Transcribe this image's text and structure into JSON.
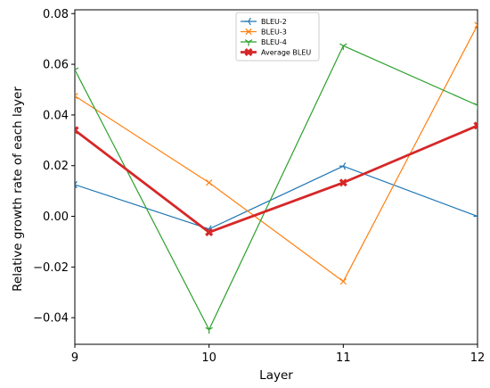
{
  "chart_data": {
    "type": "line",
    "title": "",
    "xlabel": "Layer",
    "ylabel": "Relative growth rate of each layer",
    "x": [
      9,
      10,
      11,
      12
    ],
    "xlim": [
      9,
      12
    ],
    "ylim": [
      -0.0505,
      0.0815
    ],
    "xticks": [
      "9",
      "10",
      "11",
      "12"
    ],
    "yticks": [
      0.08,
      0.06,
      0.04,
      0.02,
      0.0,
      -0.02,
      -0.04
    ],
    "ytick_labels": [
      "0.08",
      "0.06",
      "0.04",
      "0.02",
      "0.00",
      "−0.02",
      "−0.04"
    ],
    "grid": false,
    "legend_position": "top-center",
    "series": [
      {
        "name": "BLEU-2",
        "color": "#1f77b4",
        "marker": "tri-left",
        "values": [
          0.0125,
          -0.005,
          0.0198,
          0.0
        ]
      },
      {
        "name": "BLEU-3",
        "color": "#ff7f0e",
        "marker": "x-thin",
        "values": [
          0.0475,
          0.0133,
          -0.0257,
          0.0755
        ]
      },
      {
        "name": "BLEU-4",
        "color": "#2ca02c",
        "marker": "tri-down",
        "values": [
          0.0578,
          -0.0447,
          0.0673,
          0.0438
        ]
      },
      {
        "name": "Average BLEU",
        "color": "#d62728",
        "marker": "x-bold",
        "values": [
          0.034,
          -0.0063,
          0.0133,
          0.0358
        ]
      }
    ]
  }
}
